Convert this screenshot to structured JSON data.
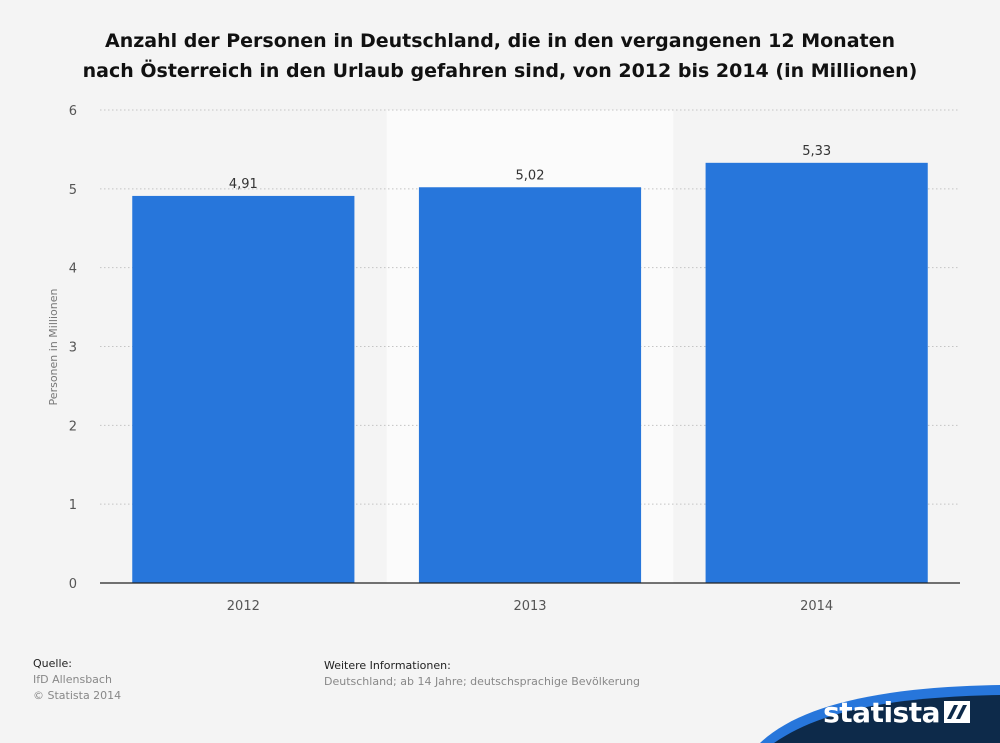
{
  "title_lines": [
    "Anzahl der Personen in Deutschland, die in den vergangenen 12 Monaten",
    "nach Österreich in den Urlaub gefahren sind, von 2012 bis 2014 (in Millionen)"
  ],
  "chart_data": {
    "type": "bar",
    "categories": [
      "2012",
      "2013",
      "2014"
    ],
    "values": [
      4.91,
      5.02,
      5.33
    ],
    "value_labels": [
      "4,91",
      "5,02",
      "5,33"
    ],
    "ylabel": "Personen in Millionen",
    "ylim": [
      0,
      6
    ],
    "yticks": [
      0,
      1,
      2,
      3,
      4,
      5,
      6
    ],
    "grid": true,
    "highlighted_category": "2013",
    "bar_color": "#2776db"
  },
  "footer": {
    "source_heading": "Quelle:",
    "source_lines": [
      "IfD Allensbach",
      "© Statista 2014"
    ],
    "info_heading": "Weitere Informationen:",
    "info_lines": [
      "Deutschland; ab 14 Jahre; deutschsprachige Bevölkerung"
    ]
  },
  "brand": {
    "name": "statista",
    "icon": "statista-logo-icon",
    "color_dark": "#0d2a4a",
    "color_accent": "#2776db"
  }
}
